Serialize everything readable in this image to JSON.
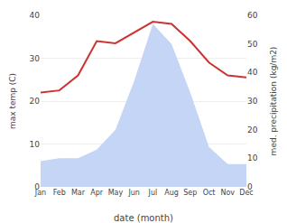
{
  "chart_data": {
    "type": "line",
    "categories": [
      "Jan",
      "Feb",
      "Mar",
      "Apr",
      "May",
      "Jun",
      "Jul",
      "Aug",
      "Sep",
      "Oct",
      "Nov",
      "Dec"
    ],
    "series": [
      {
        "type": "area",
        "color": "#c5d5f5",
        "axis": "y2",
        "values": [
          9,
          10,
          10,
          13,
          20,
          37,
          57,
          50,
          33,
          14,
          8,
          8
        ]
      },
      {
        "type": "line",
        "color": "#cc3333",
        "values": [
          22,
          22.5,
          26,
          34,
          33.5,
          36,
          38.5,
          38,
          34,
          29,
          26,
          25.5
        ]
      }
    ],
    "xlabel": "date (month)",
    "ylabel": "max temp (C)",
    "y2label": "med. precipitation (kg/m2)",
    "ylim": [
      0,
      40
    ],
    "yticks": [
      0,
      10,
      20,
      30,
      40
    ],
    "y2lim": [
      0,
      60
    ],
    "y2ticks": [
      0,
      10,
      20,
      30,
      40,
      50,
      60
    ],
    "grid": true
  }
}
